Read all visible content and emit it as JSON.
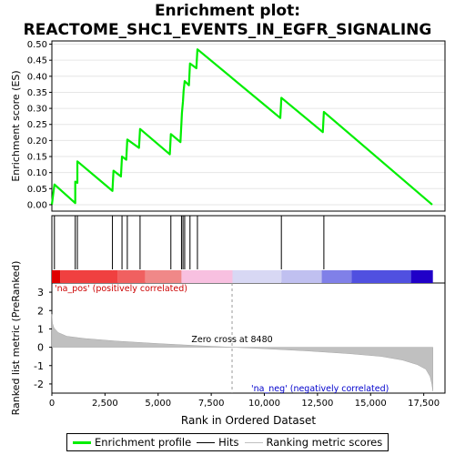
{
  "title_line1": "Enrichment plot:",
  "title_line2": "REACTOME_SHC1_EVENTS_IN_EGFR_SIGNALING",
  "chart_data": {
    "type": "line",
    "x_domain": [
      0,
      18500
    ],
    "enrichment": {
      "ylabel": "Enrichment score (ES)",
      "ylim": [
        -0.02,
        0.51
      ],
      "yticks": [
        0.0,
        0.05,
        0.1,
        0.15,
        0.2,
        0.25,
        0.3,
        0.35,
        0.4,
        0.45,
        0.5
      ],
      "ytick_labels": [
        "0.00",
        "0.05",
        "0.10",
        "0.15",
        "0.20",
        "0.25",
        "0.30",
        "0.35",
        "0.40",
        "0.45",
        "0.50"
      ],
      "series": [
        {
          "name": "Enrichment profile",
          "color": "#00ee00",
          "x": [
            0,
            120,
            1100,
            1100,
            1200,
            1200,
            2850,
            2900,
            3250,
            3300,
            3500,
            3550,
            4100,
            4150,
            5550,
            5600,
            6050,
            6100,
            6120,
            6170,
            6200,
            6250,
            6450,
            6500,
            6800,
            6850,
            10750,
            10800,
            12750,
            12800,
            17900
          ],
          "y": [
            0.0,
            0.063,
            0.005,
            0.072,
            0.068,
            0.135,
            0.043,
            0.106,
            0.088,
            0.15,
            0.14,
            0.203,
            0.177,
            0.236,
            0.157,
            0.22,
            0.195,
            0.258,
            0.285,
            0.322,
            0.355,
            0.385,
            0.372,
            0.44,
            0.425,
            0.484,
            0.27,
            0.333,
            0.226,
            0.289,
            0.0
          ]
        }
      ]
    },
    "hits": [
      120,
      1100,
      1200,
      2850,
      3300,
      3550,
      4150,
      5600,
      6100,
      6170,
      6250,
      6500,
      6850,
      10800,
      12800
    ],
    "metric": {
      "ylabel": "Ranked list metric (PreRanked)",
      "ylim": [
        -2.5,
        3.5
      ],
      "yticks": [
        -2,
        -1,
        0,
        1,
        2,
        3
      ],
      "ytick_labels": [
        "-2",
        "-1",
        "0",
        "1",
        "2",
        "3"
      ],
      "xlabel": "Rank in Ordered Dataset",
      "xticks": [
        0,
        2500,
        5000,
        7500,
        10000,
        12500,
        15000,
        17500
      ],
      "xtick_labels": [
        "0",
        "2,500",
        "5,000",
        "7,500",
        "10,000",
        "12,500",
        "15,000",
        "17,500"
      ],
      "x": [
        0,
        30,
        100,
        300,
        700,
        1500,
        3000,
        5000,
        7000,
        8480,
        10000,
        12000,
        14000,
        15500,
        16500,
        17200,
        17600,
        17800,
        17880,
        17930
      ],
      "y": [
        1.8,
        1.3,
        1.05,
        0.8,
        0.6,
        0.48,
        0.34,
        0.2,
        0.08,
        0.0,
        -0.08,
        -0.2,
        -0.35,
        -0.5,
        -0.7,
        -0.95,
        -1.2,
        -1.6,
        -2.0,
        -2.4
      ],
      "color": "#c0c0c0"
    },
    "zero_cross": 8480,
    "zero_cross_label": "Zero cross at 8480",
    "pos_label": "'na_pos' (positively correlated)",
    "neg_label": "'na_neg' (negatively correlated)",
    "colorbar": [
      {
        "from": 0,
        "to": 400,
        "color": "#e00000"
      },
      {
        "from": 400,
        "to": 3100,
        "color": "#f04040"
      },
      {
        "from": 3100,
        "to": 4400,
        "color": "#f06060"
      },
      {
        "from": 4400,
        "to": 6100,
        "color": "#f08888"
      },
      {
        "from": 6100,
        "to": 8500,
        "color": "#f8c0e0"
      },
      {
        "from": 8500,
        "to": 10800,
        "color": "#d8d8f4"
      },
      {
        "from": 10800,
        "to": 12700,
        "color": "#c0c0f0"
      },
      {
        "from": 12700,
        "to": 14100,
        "color": "#8080e8"
      },
      {
        "from": 14100,
        "to": 16900,
        "color": "#5050e0"
      },
      {
        "from": 16900,
        "to": 17930,
        "color": "#2000c8"
      }
    ],
    "legend": [
      {
        "label": "Enrichment profile",
        "color": "#00ee00"
      },
      {
        "label": "Hits",
        "color": "#000000"
      },
      {
        "label": "Ranking metric scores",
        "color": "#c0c0c0"
      }
    ]
  }
}
